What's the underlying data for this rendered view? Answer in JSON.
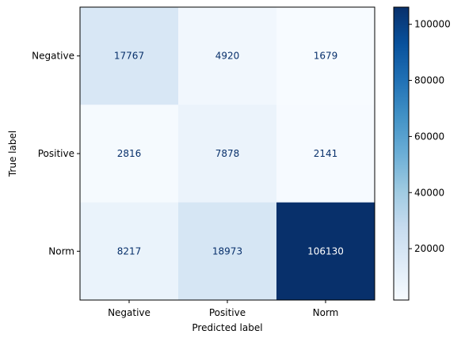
{
  "chart_data": {
    "type": "heatmap",
    "xlabel": "Predicted label",
    "ylabel": "True label",
    "x_categories": [
      "Negative",
      "Positive",
      "Norm"
    ],
    "y_categories": [
      "Negative",
      "Positive",
      "Norm"
    ],
    "values": [
      [
        17767,
        4920,
        1679
      ],
      [
        2816,
        7878,
        2141
      ],
      [
        8217,
        18973,
        106130
      ]
    ],
    "colorbar": {
      "ticks": [
        20000,
        40000,
        60000,
        80000,
        100000
      ],
      "tick_labels": [
        "20000",
        "40000",
        "60000",
        "80000",
        "100000"
      ],
      "range": [
        1679,
        106130
      ],
      "colormap": "Blues"
    },
    "colors": {
      "low": "#f7fbff",
      "high": "#08306b",
      "text_on_light": "#08306b",
      "text_on_dark": "#ffffff"
    }
  }
}
